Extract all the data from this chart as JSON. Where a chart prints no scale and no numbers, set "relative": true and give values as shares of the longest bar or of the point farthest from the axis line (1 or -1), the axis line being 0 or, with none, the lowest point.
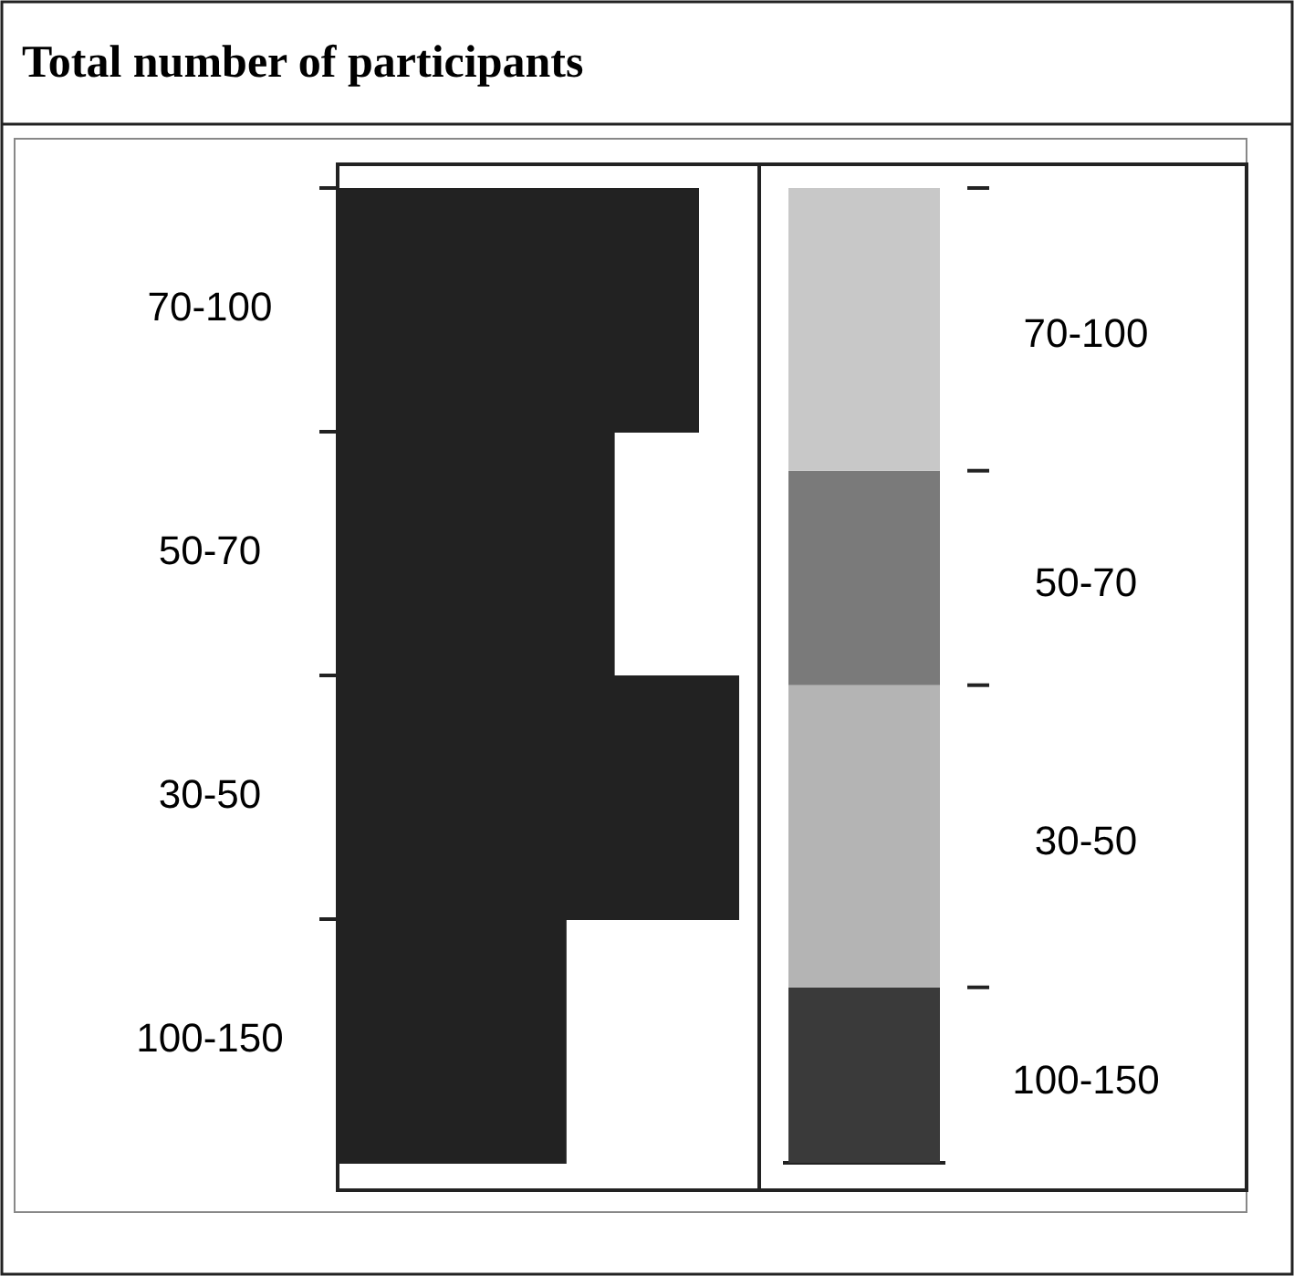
{
  "chart_data": [
    {
      "type": "bar",
      "title": "Total number of participants",
      "orientation": "horizontal",
      "relative": true,
      "categories": [
        "70-100",
        "50-70",
        "30-50",
        "100-150"
      ],
      "values": [
        0.9,
        0.69,
        1,
        0.57
      ],
      "color": "#222222"
    },
    {
      "type": "bar",
      "stacked": true,
      "relative": true,
      "categories": [
        null
      ],
      "series": [
        {
          "name": "100-150",
          "color": "#3a3a3a",
          "values": [
            0.18
          ]
        },
        {
          "name": "30-50",
          "color": "#b4b4b4",
          "values": [
            0.31
          ]
        },
        {
          "name": "50-70",
          "color": "#7a7a7a",
          "values": [
            0.22
          ]
        },
        {
          "name": "70-100",
          "color": "#c8c8c8",
          "values": [
            0.29
          ]
        }
      ]
    }
  ]
}
